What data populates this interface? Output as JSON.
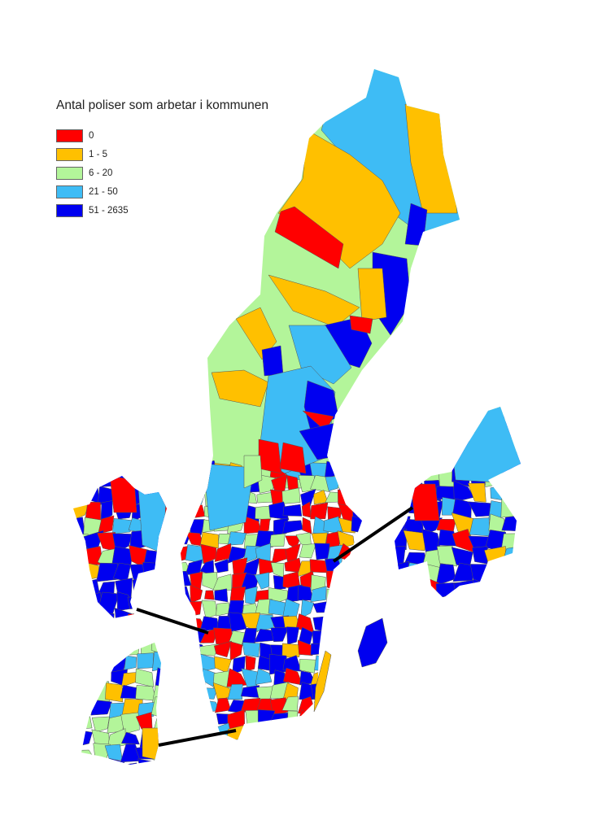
{
  "legend": {
    "title": "Antal poliser som arbetar i kommunen",
    "classes": [
      {
        "label": "0",
        "color": "#ff0000"
      },
      {
        "label": "1 - 5",
        "color": "#ffc000"
      },
      {
        "label": "6 - 20",
        "color": "#b3f59a"
      },
      {
        "label": "21 - 50",
        "color": "#3ebcf5"
      },
      {
        "label": "51 - 2635",
        "color": "#0000f0"
      }
    ]
  },
  "border_color": "#555555",
  "connector_color": "#000000"
}
